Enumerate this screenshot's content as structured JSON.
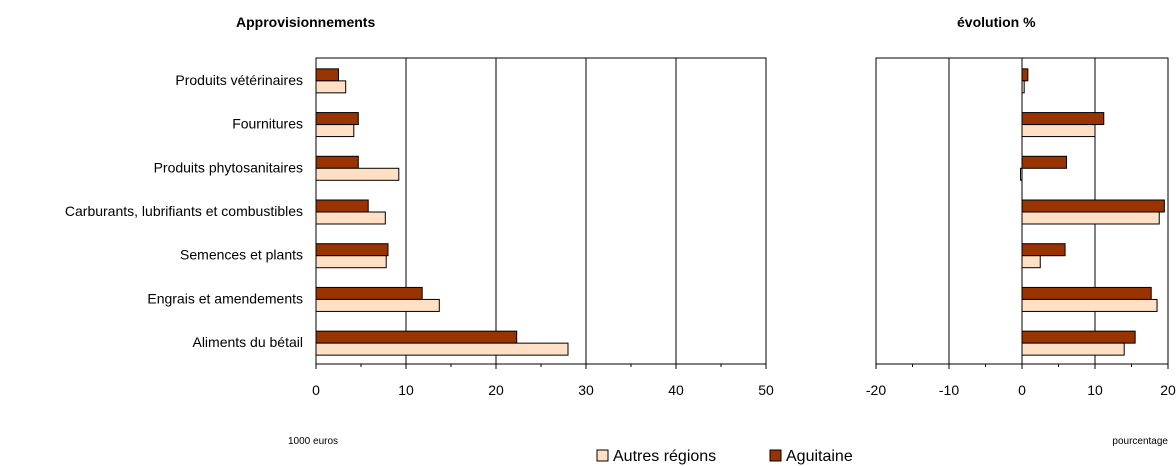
{
  "chart_data": [
    {
      "type": "bar",
      "orientation": "horizontal",
      "title": "Approvisionnements",
      "unit_label": "1000 euros",
      "categories": [
        "Produits vétérinaires",
        "Fournitures",
        "Produits phytosanitaires",
        "Carburants, lubrifiants et combustibles",
        "Semences et plants",
        "Engrais et amendements",
        "Aliments du bétail"
      ],
      "series": [
        {
          "name": "Aguitaine",
          "color": "#993300",
          "values": [
            2.5,
            4.7,
            4.7,
            5.8,
            8.0,
            11.8,
            22.3
          ]
        },
        {
          "name": "Autres régions",
          "color": "#ffe0c4",
          "values": [
            3.3,
            4.2,
            9.2,
            7.7,
            7.8,
            13.7,
            28.0
          ]
        }
      ],
      "xlim": [
        0,
        50
      ],
      "xticks": [
        0,
        10,
        20,
        30,
        40,
        50
      ],
      "grid": true
    },
    {
      "type": "bar",
      "orientation": "horizontal",
      "title": "évolution %",
      "unit_label": "pourcentage",
      "categories": [
        "Produits vétérinaires",
        "Fournitures",
        "Produits phytosanitaires",
        "Carburants, lubrifiants et combustibles",
        "Semences et plants",
        "Engrais et amendements",
        "Aliments du bétail"
      ],
      "series": [
        {
          "name": "Aguitaine",
          "color": "#993300",
          "values": [
            0.8,
            11.2,
            6.1,
            19.5,
            5.9,
            17.7,
            15.5
          ]
        },
        {
          "name": "Autres régions",
          "color": "#ffe0c4",
          "values": [
            0.3,
            10.0,
            -0.2,
            18.8,
            2.5,
            18.5,
            14.0
          ]
        }
      ],
      "xlim": [
        -20,
        20
      ],
      "xticks": [
        -20,
        -10,
        0,
        10,
        20
      ],
      "grid": true
    }
  ],
  "legend": {
    "items": [
      {
        "label": "Autres régions",
        "color": "#ffe0c4"
      },
      {
        "label": "Aguitaine",
        "color": "#993300"
      }
    ]
  }
}
